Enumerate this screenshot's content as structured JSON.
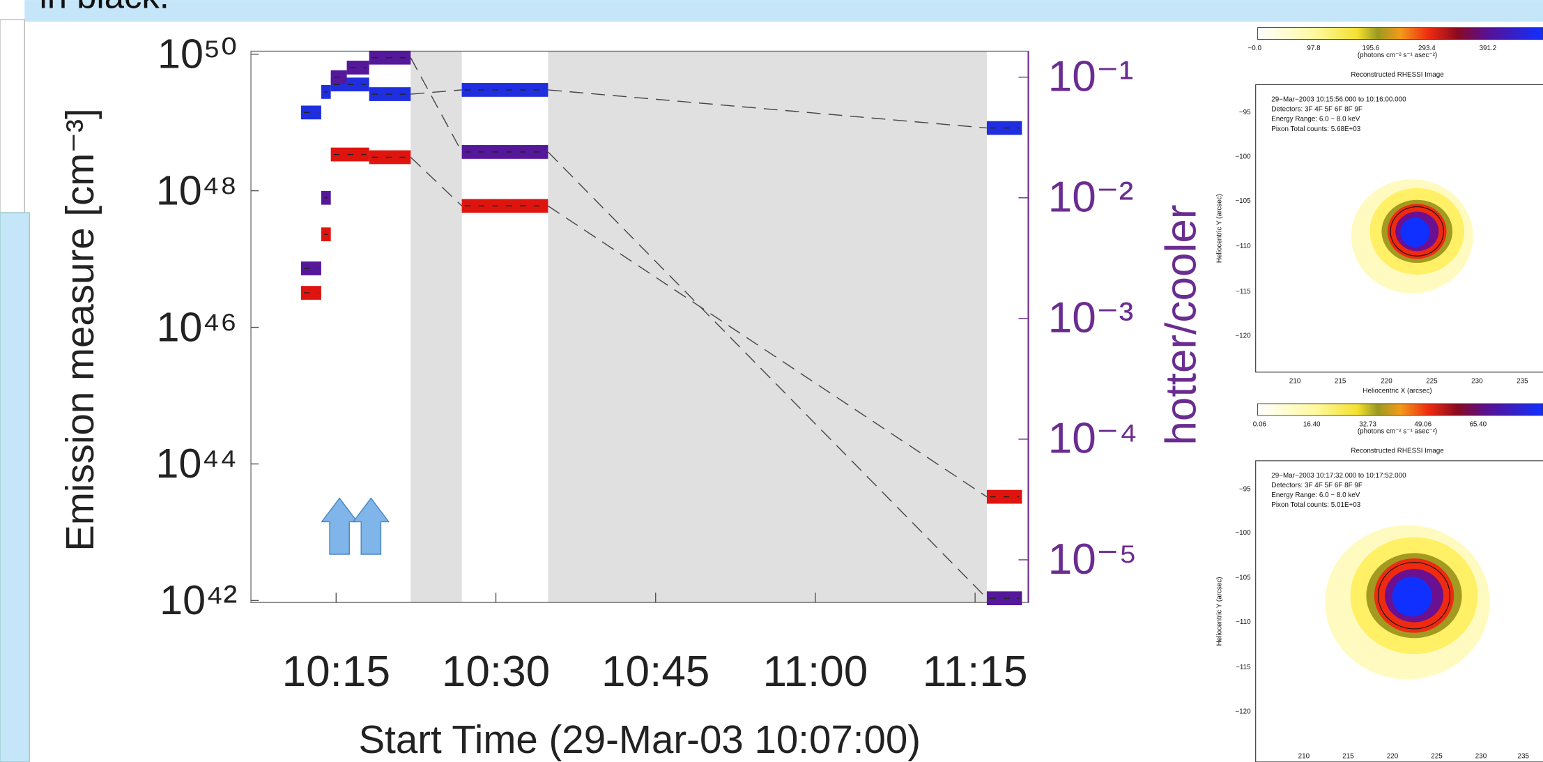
{
  "header_text": "in black.",
  "chart_data": {
    "type": "segments",
    "y_label": "Emission measure [cm⁻³]",
    "y2_label": "hotter/cooler",
    "x_label": "Start Time (29-Mar-03 10:07:00)",
    "xlim": [
      7,
      80
    ],
    "xticks": [
      {
        "value": 15,
        "label": "10:15"
      },
      {
        "value": 30,
        "label": "10:30"
      },
      {
        "value": 45,
        "label": "10:45"
      },
      {
        "value": 60,
        "label": "11:00"
      },
      {
        "value": 75,
        "label": "11:15"
      }
    ],
    "log_y": true,
    "ylim": [
      1e+42,
      1e+50
    ],
    "yticks": [
      {
        "value": 1e+42,
        "label": "10⁴²"
      },
      {
        "value": 1e+44,
        "label": "10⁴⁴"
      },
      {
        "value": 1e+46,
        "label": "10⁴⁶"
      },
      {
        "value": 1e+48,
        "label": "10⁴⁸"
      },
      {
        "value": 1e+50,
        "label": "10⁵⁰"
      }
    ],
    "y2lim": [
      4.6e-06,
      0.155
    ],
    "y2ticks": [
      {
        "value": 1e-05,
        "label": "10⁻⁵"
      },
      {
        "value": 0.0001,
        "label": "10⁻⁴"
      },
      {
        "value": 0.001,
        "label": "10⁻³"
      },
      {
        "value": 0.01,
        "label": "10⁻²"
      },
      {
        "value": 0.1,
        "label": "10⁻¹"
      }
    ],
    "y2_color": "#6a2c91",
    "shaded_spans": [
      [
        22.0,
        26.8
      ],
      [
        34.9,
        76.1
      ]
    ],
    "shade_color": "#e0e0e0",
    "series": [
      {
        "color": "#e0140f",
        "axis": "y",
        "start": [
          11.7,
          13.6,
          14.5,
          18.1,
          26.8,
          76.1
        ],
        "end": [
          13.6,
          14.5,
          18.1,
          22.0,
          34.9,
          79.4
        ],
        "values": [
          3.2e+46,
          2.3e+47,
          3.4e+48,
          3.1e+48,
          6e+47,
          3.3e+43
        ]
      },
      {
        "color": "#1f2fe0",
        "axis": "y",
        "start": [
          11.7,
          13.6,
          14.5,
          18.1,
          26.8,
          76.1
        ],
        "end": [
          13.6,
          14.5,
          18.1,
          22.0,
          34.9,
          79.4
        ],
        "values": [
          1.4e+49,
          2.8e+49,
          3.6e+49,
          2.6e+49,
          3e+49,
          8.3e+48
        ]
      },
      {
        "color": "#55189a",
        "axis": "y2",
        "start": [
          11.7,
          13.6,
          14.5,
          16.0,
          18.1,
          26.8,
          76.1
        ],
        "end": [
          13.6,
          14.5,
          16.0,
          18.1,
          22.0,
          34.9,
          79.4
        ],
        "values": [
          0.0026,
          0.01,
          0.1,
          0.12,
          0.145,
          0.024,
          4.8e-06
        ]
      }
    ]
  },
  "panels": [
    {
      "colorbar_labels": [
        "−0.0",
        "97.8",
        "195.6",
        "293.4",
        "391.2"
      ],
      "colorbar_unit": "(photons cm⁻² s⁻¹ asec⁻²)",
      "title": "Reconstructed RHESSI Image",
      "info": [
        "29−Mar−2003 10:15:56.000 to 10:16:00.000",
        "Detectors: 3F 4F 5F 6F 8F 9F",
        "Energy Range: 6.0 − 8.0 keV",
        "Pixon     Total counts: 5.68E+03"
      ],
      "yticks": [
        "−95",
        "−100",
        "−105",
        "−110",
        "−115",
        "−120"
      ],
      "xticks": [
        "210",
        "215",
        "220",
        "225",
        "230",
        "235"
      ],
      "xlabel": "Heliocentric X (arcsec)",
      "ylabel": "Heliocentric Y (arcsec)"
    },
    {
      "colorbar_labels": [
        "0.06",
        "16.40",
        "32.73",
        "49.06",
        "65.40"
      ],
      "colorbar_unit": "(photons cm⁻² s⁻¹ asec⁻²)",
      "title": "Reconstructed RHESSI Image",
      "info": [
        "29−Mar−2003 10:17:32.000 to 10:17:52.000",
        "Detectors: 3F 4F 5F 6F 8F 9F",
        "Energy Range: 6.0 − 8.0 keV",
        "Pixon     Total counts: 5.01E+03"
      ],
      "yticks": [
        "−95",
        "−100",
        "−105",
        "−110",
        "−115",
        "−120"
      ],
      "xticks": [
        "210",
        "215",
        "220",
        "225",
        "230",
        "235"
      ],
      "ylabel": "Heliocentric Y (arcsec)"
    }
  ]
}
